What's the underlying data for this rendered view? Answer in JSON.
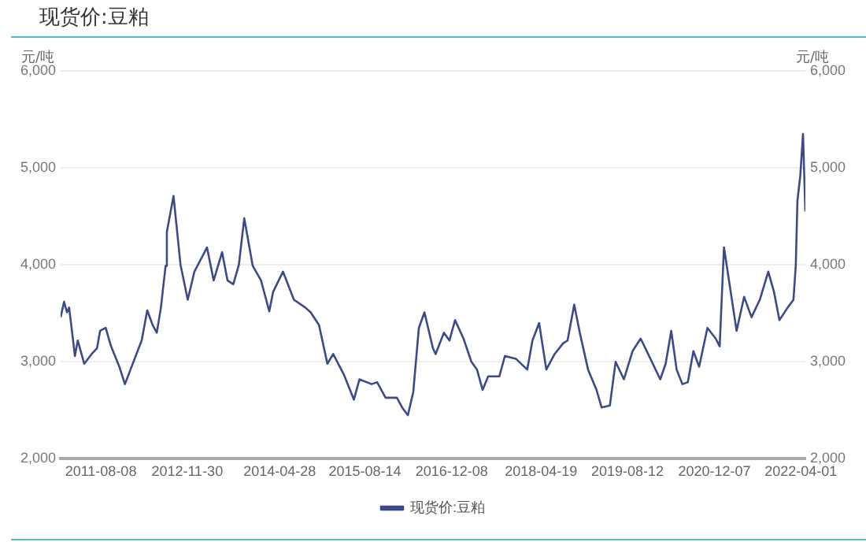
{
  "chart_data": {
    "type": "line",
    "title": "现货价:豆粕",
    "ylabel": "元/吨",
    "y2label": "元/吨",
    "x": [
      "2010-12-28",
      "2011-01-16",
      "2011-02-01",
      "2011-02-13",
      "2011-03-02",
      "2011-03-17",
      "2011-04-02",
      "2011-05-08",
      "2011-06-18",
      "2011-07-18",
      "2011-08-04",
      "2011-09-04",
      "2011-10-04",
      "2011-11-19",
      "2011-12-20",
      "2012-01-20",
      "2012-03-22",
      "2012-04-22",
      "2012-05-22",
      "2012-06-14",
      "2012-07-07",
      "2012-08-02",
      "2012-08-09",
      "2012-09-15",
      "2012-10-24",
      "2012-12-03",
      "2013-01-09",
      "2013-03-20",
      "2013-04-26",
      "2013-06-12",
      "2013-07-12",
      "2013-08-13",
      "2013-09-13",
      "2013-10-13",
      "2013-11-29",
      "2014-01-14",
      "2014-03-01",
      "2014-03-22",
      "2014-05-16",
      "2014-07-16",
      "2014-09-17",
      "2014-10-17",
      "2014-12-02",
      "2015-01-18",
      "2015-02-19",
      "2015-04-19",
      "2015-06-14",
      "2015-07-15",
      "2015-09-21",
      "2015-10-21",
      "2015-12-07",
      "2016-02-08",
      "2016-03-08",
      "2016-04-09",
      "2016-05-09",
      "2016-06-09",
      "2016-07-10",
      "2016-08-26",
      "2016-09-10",
      "2016-10-26",
      "2016-11-26",
      "2016-12-27",
      "2017-02-12",
      "2017-03-28",
      "2017-04-28",
      "2017-05-29",
      "2017-06-29",
      "2017-08-30",
      "2017-09-30",
      "2017-12-01",
      "2018-02-01",
      "2018-03-02",
      "2018-04-08",
      "2018-05-18",
      "2018-07-03",
      "2018-08-19",
      "2018-09-13",
      "2018-10-20",
      "2018-11-20",
      "2019-01-05",
      "2019-02-21",
      "2019-03-21",
      "2019-05-06",
      "2019-06-07",
      "2019-07-23",
      "2019-09-09",
      "2019-10-24",
      "2019-12-10",
      "2020-02-10",
      "2020-03-11",
      "2020-04-11",
      "2020-05-11",
      "2020-06-12",
      "2020-07-12",
      "2020-08-12",
      "2020-09-13",
      "2020-10-29",
      "2020-12-14",
      "2021-01-05",
      "2021-01-29",
      "2021-03-01",
      "2021-04-09",
      "2021-05-21",
      "2021-07-01",
      "2021-08-16",
      "2021-10-02",
      "2021-11-03",
      "2021-12-03",
      "2022-01-18",
      "2022-02-19",
      "2022-03-04",
      "2022-03-13",
      "2022-03-29",
      "2022-04-13",
      "2022-04-26"
    ],
    "series": [
      {
        "name": "现货价:豆粕",
        "color": "#3d4a8a",
        "values": [
          3460,
          3620,
          3510,
          3560,
          3300,
          3060,
          3220,
          2980,
          3080,
          3140,
          3320,
          3350,
          3160,
          2950,
          2770,
          2920,
          3220,
          3530,
          3380,
          3300,
          3560,
          3990,
          4340,
          4710,
          4000,
          3640,
          3930,
          4180,
          3840,
          4130,
          3840,
          3800,
          4000,
          4480,
          3990,
          3840,
          3520,
          3720,
          3930,
          3640,
          3560,
          3510,
          3380,
          2980,
          3080,
          2870,
          2610,
          2820,
          2770,
          2790,
          2630,
          2630,
          2530,
          2450,
          2690,
          3350,
          3510,
          3140,
          3080,
          3300,
          3220,
          3430,
          3240,
          3000,
          2920,
          2710,
          2850,
          2850,
          3060,
          3030,
          2920,
          3220,
          3400,
          2920,
          3080,
          3190,
          3220,
          3590,
          3300,
          2920,
          2710,
          2530,
          2550,
          3000,
          2820,
          3110,
          3240,
          3060,
          2820,
          2980,
          3320,
          2920,
          2770,
          2790,
          3110,
          2950,
          3350,
          3240,
          3160,
          4180,
          3800,
          3320,
          3670,
          3460,
          3640,
          3930,
          3720,
          3430,
          3560,
          3640,
          4000,
          4660,
          4920,
          5350,
          4550
        ]
      }
    ],
    "xlim": [
      "2010-12-28",
      "2022-04-26"
    ],
    "xticks": [
      "2011-08-08",
      "2012-11-30",
      "2014-04-28",
      "2015-08-14",
      "2016-12-08",
      "2018-04-19",
      "2019-08-12",
      "2020-12-07",
      "2022-04-01"
    ],
    "ylim": [
      2000,
      6000
    ],
    "yticks": [
      {
        "value": 2000,
        "label": "2,000"
      },
      {
        "value": 3000,
        "label": "3,000"
      },
      {
        "value": 4000,
        "label": "4,000"
      },
      {
        "value": 5000,
        "label": "5,000"
      },
      {
        "value": 6000,
        "label": "6,000"
      }
    ],
    "y2lim": [
      2000,
      6000
    ],
    "y2ticks": [
      {
        "value": 2000,
        "label": "2,000"
      },
      {
        "value": 3000,
        "label": "3,000"
      },
      {
        "value": 4000,
        "label": "4,000"
      },
      {
        "value": 5000,
        "label": "5,000"
      },
      {
        "value": 6000,
        "label": "6,000"
      }
    ],
    "grid": "y",
    "legend": "bottom",
    "marker": "none",
    "line_style": "solid"
  }
}
